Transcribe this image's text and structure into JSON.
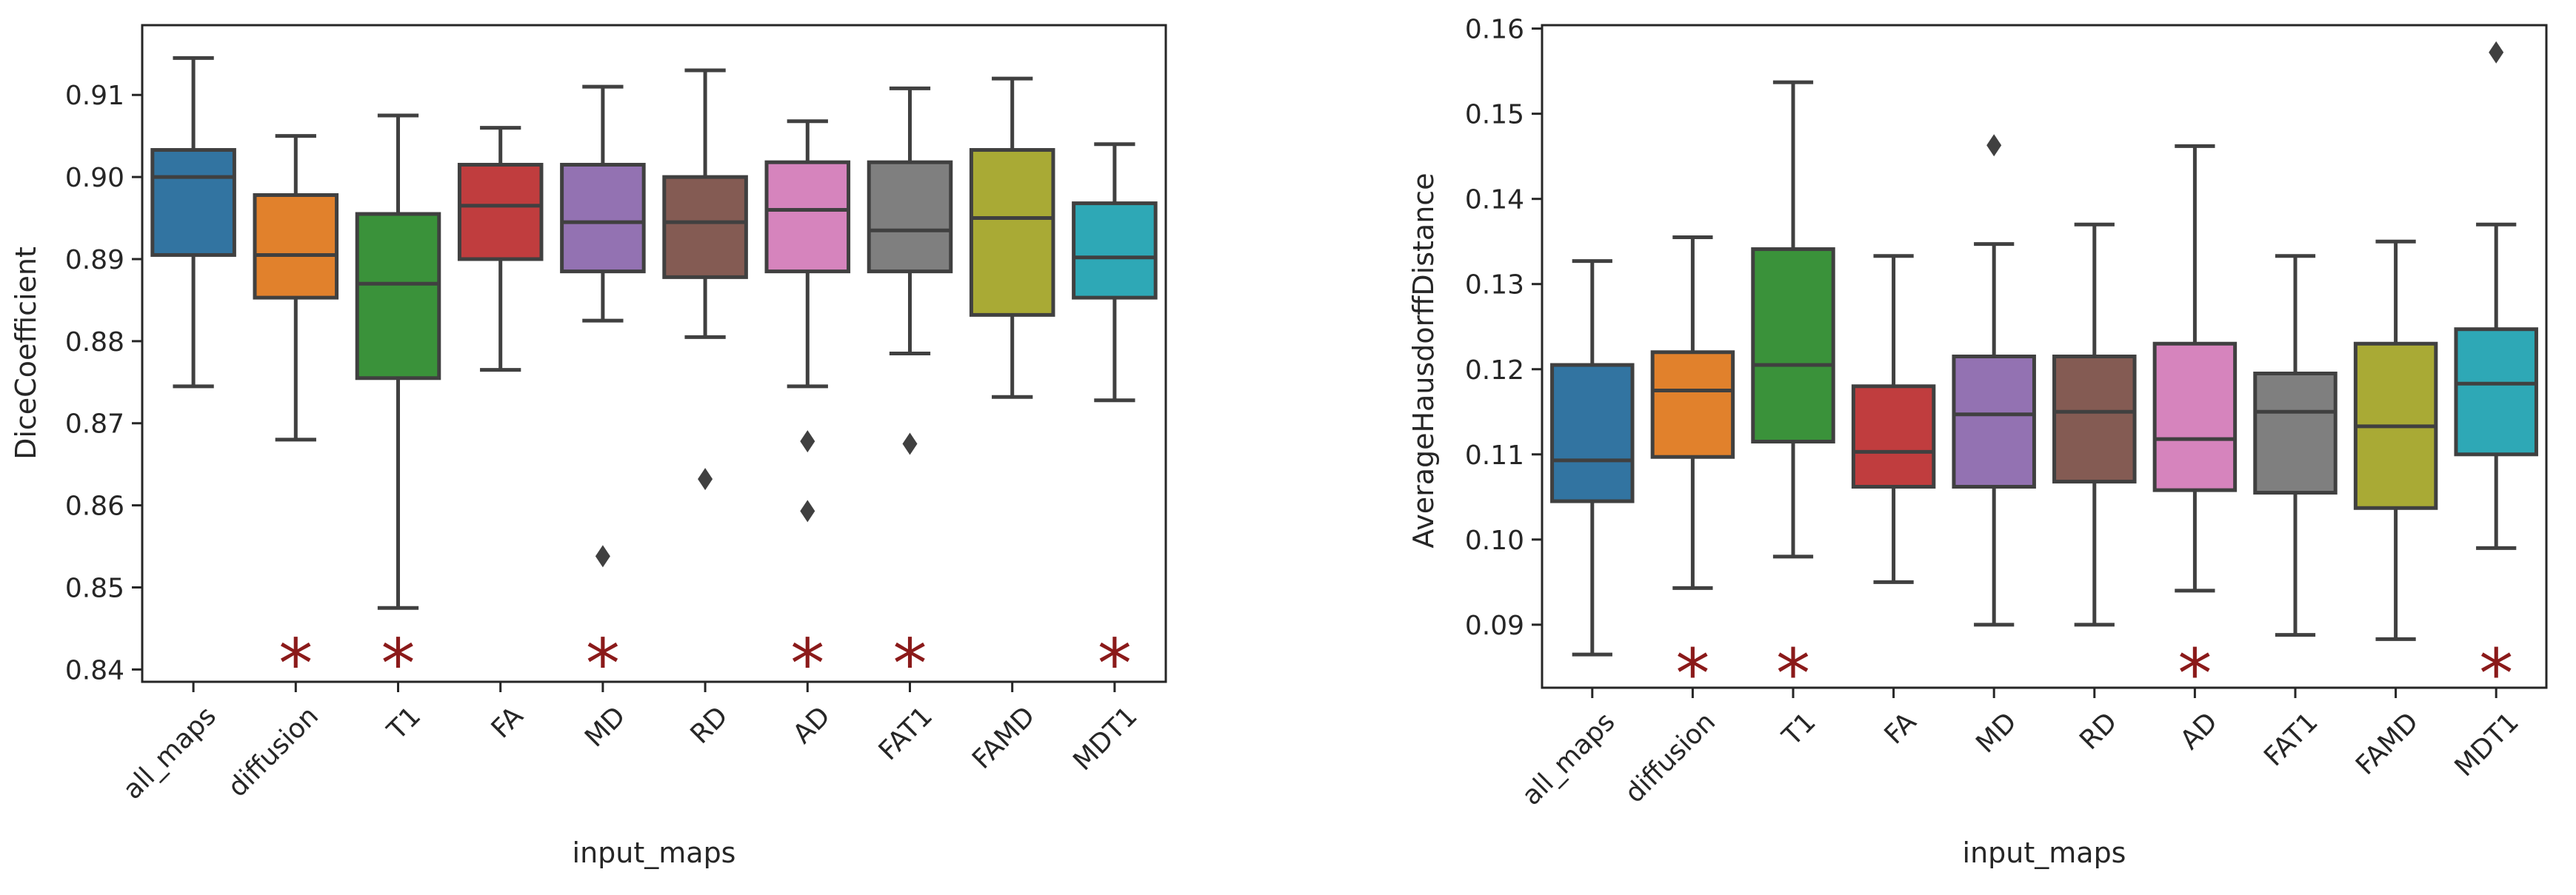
{
  "chart_data": [
    {
      "type": "box",
      "xlabel": "input_maps",
      "ylabel": "DiceCoefficient",
      "ylim": [
        0.8385,
        0.9185
      ],
      "yticks": [
        0.84,
        0.85,
        0.86,
        0.87,
        0.88,
        0.89,
        0.9,
        0.91
      ],
      "ytick_labels": [
        "0.84",
        "0.85",
        "0.86",
        "0.87",
        "0.88",
        "0.89",
        "0.90",
        "0.91"
      ],
      "grid": false,
      "significance_marker": "*",
      "significance_y": 0.8425,
      "categories": [
        "all_maps",
        "diffusion",
        "T1",
        "FA",
        "MD",
        "RD",
        "AD",
        "FAT1",
        "FAMD",
        "MDT1"
      ],
      "colors": [
        "#3274a1",
        "#e1812c",
        "#3a923a",
        "#c03d3e",
        "#9372b2",
        "#845b53",
        "#d684bd",
        "#7f7f7f",
        "#a9aa35",
        "#2ea8b6"
      ],
      "boxes": [
        {
          "whislo": 0.8745,
          "q1": 0.8905,
          "med": 0.9,
          "q3": 0.9033,
          "whishi": 0.9145,
          "fliers": [],
          "significant": false
        },
        {
          "whislo": 0.868,
          "q1": 0.8853,
          "med": 0.8905,
          "q3": 0.8978,
          "whishi": 0.905,
          "fliers": [],
          "significant": true
        },
        {
          "whislo": 0.8475,
          "q1": 0.8755,
          "med": 0.887,
          "q3": 0.8955,
          "whishi": 0.9075,
          "fliers": [],
          "significant": true
        },
        {
          "whislo": 0.8765,
          "q1": 0.89,
          "med": 0.8965,
          "q3": 0.9015,
          "whishi": 0.906,
          "fliers": [],
          "significant": false
        },
        {
          "whislo": 0.8825,
          "q1": 0.8885,
          "med": 0.8945,
          "q3": 0.9015,
          "whishi": 0.911,
          "fliers": [
            0.8538
          ],
          "significant": true
        },
        {
          "whislo": 0.8805,
          "q1": 0.8878,
          "med": 0.8945,
          "q3": 0.9,
          "whishi": 0.913,
          "fliers": [
            0.8632
          ],
          "significant": false
        },
        {
          "whislo": 0.8745,
          "q1": 0.8885,
          "med": 0.896,
          "q3": 0.9018,
          "whishi": 0.9068,
          "fliers": [
            0.8678,
            0.8593
          ],
          "significant": true
        },
        {
          "whislo": 0.8785,
          "q1": 0.8885,
          "med": 0.8935,
          "q3": 0.9018,
          "whishi": 0.9108,
          "fliers": [
            0.8675
          ],
          "significant": true
        },
        {
          "whislo": 0.8732,
          "q1": 0.8832,
          "med": 0.895,
          "q3": 0.9033,
          "whishi": 0.912,
          "fliers": [],
          "significant": false
        },
        {
          "whislo": 0.8728,
          "q1": 0.8853,
          "med": 0.8902,
          "q3": 0.8968,
          "whishi": 0.904,
          "fliers": [],
          "significant": true
        }
      ]
    },
    {
      "type": "box",
      "xlabel": "input_maps",
      "ylabel": "AverageHausdorffDistance",
      "ylim": [
        0.0826,
        0.1604
      ],
      "yticks": [
        0.09,
        0.1,
        0.11,
        0.12,
        0.13,
        0.14,
        0.15,
        0.16
      ],
      "ytick_labels": [
        "0.09",
        "0.10",
        "0.11",
        "0.12",
        "0.13",
        "0.14",
        "0.15",
        "0.16"
      ],
      "grid": false,
      "significance_marker": "*",
      "significance_y": 0.086,
      "categories": [
        "all_maps",
        "diffusion",
        "T1",
        "FA",
        "MD",
        "RD",
        "AD",
        "FAT1",
        "FAMD",
        "MDT1"
      ],
      "colors": [
        "#3274a1",
        "#e1812c",
        "#3a923a",
        "#c03d3e",
        "#9372b2",
        "#845b53",
        "#d684bd",
        "#7f7f7f",
        "#a9aa35",
        "#2ea8b6"
      ],
      "boxes": [
        {
          "whislo": 0.0865,
          "q1": 0.1045,
          "med": 0.1093,
          "q3": 0.1205,
          "whishi": 0.1327,
          "fliers": [],
          "significant": false
        },
        {
          "whislo": 0.0943,
          "q1": 0.1097,
          "med": 0.1175,
          "q3": 0.122,
          "whishi": 0.1355,
          "fliers": [],
          "significant": true
        },
        {
          "whislo": 0.098,
          "q1": 0.1115,
          "med": 0.1205,
          "q3": 0.1341,
          "whishi": 0.1537,
          "fliers": [],
          "significant": true
        },
        {
          "whislo": 0.095,
          "q1": 0.1062,
          "med": 0.1103,
          "q3": 0.118,
          "whishi": 0.1333,
          "fliers": [],
          "significant": false
        },
        {
          "whislo": 0.09,
          "q1": 0.1062,
          "med": 0.1147,
          "q3": 0.1215,
          "whishi": 0.1347,
          "fliers": [
            0.1463
          ],
          "significant": false
        },
        {
          "whislo": 0.09,
          "q1": 0.1068,
          "med": 0.115,
          "q3": 0.1215,
          "whishi": 0.137,
          "fliers": [],
          "significant": false
        },
        {
          "whislo": 0.094,
          "q1": 0.1058,
          "med": 0.1118,
          "q3": 0.123,
          "whishi": 0.1462,
          "fliers": [],
          "significant": true
        },
        {
          "whislo": 0.0888,
          "q1": 0.1055,
          "med": 0.115,
          "q3": 0.1195,
          "whishi": 0.1333,
          "fliers": [],
          "significant": false
        },
        {
          "whislo": 0.0883,
          "q1": 0.1037,
          "med": 0.1133,
          "q3": 0.123,
          "whishi": 0.135,
          "fliers": [],
          "significant": false
        },
        {
          "whislo": 0.099,
          "q1": 0.11,
          "med": 0.1183,
          "q3": 0.1247,
          "whishi": 0.137,
          "fliers": [
            0.1572
          ],
          "significant": true
        }
      ]
    }
  ]
}
